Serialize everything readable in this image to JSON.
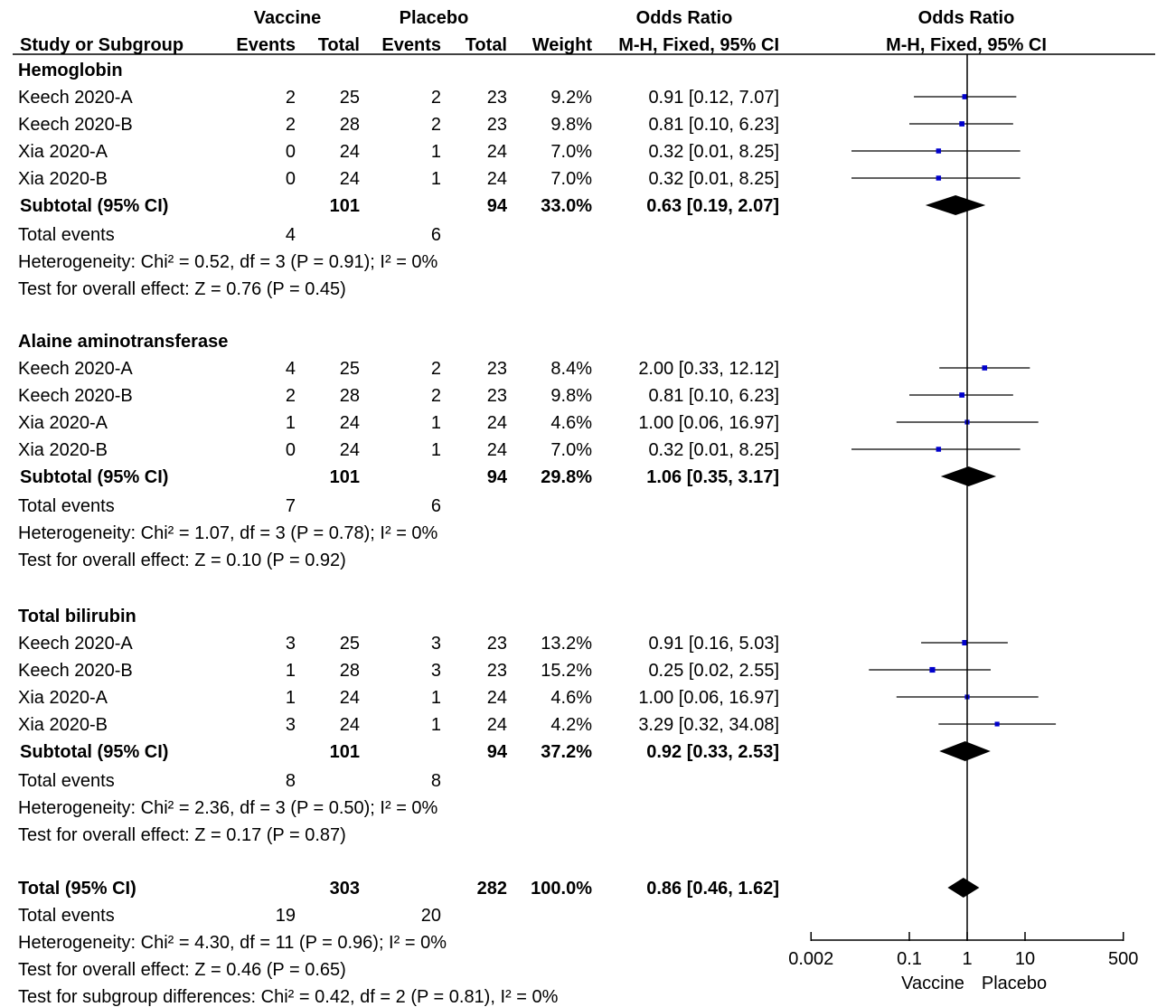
{
  "chart_data": {
    "type": "forest",
    "header": {
      "group1_label": "Vaccine",
      "group2_label": "Placebo",
      "effect_label": "Odds Ratio",
      "plot_label": "Odds Ratio",
      "columns": {
        "study": "Study or Subgroup",
        "events1": "Events",
        "total1": "Total",
        "events2": "Events",
        "total2": "Total",
        "weight": "Weight",
        "method": "M-H, Fixed, 95% CI",
        "plot_method": "M-H, Fixed, 95% CI"
      }
    },
    "subgroups": [
      {
        "name": "Hemoglobin",
        "studies": [
          {
            "study": "Keech 2020-A",
            "e1": "2",
            "n1": "25",
            "e2": "2",
            "n2": "23",
            "weight": "9.2%",
            "ci_text": "0.91 [0.12, 7.07]",
            "or": 0.91,
            "lo": 0.12,
            "hi": 7.07
          },
          {
            "study": "Keech 2020-B",
            "e1": "2",
            "n1": "28",
            "e2": "2",
            "n2": "23",
            "weight": "9.8%",
            "ci_text": "0.81 [0.10, 6.23]",
            "or": 0.81,
            "lo": 0.1,
            "hi": 6.23
          },
          {
            "study": "Xia 2020-A",
            "e1": "0",
            "n1": "24",
            "e2": "1",
            "n2": "24",
            "weight": "7.0%",
            "ci_text": "0.32 [0.01, 8.25]",
            "or": 0.32,
            "lo": 0.01,
            "hi": 8.25
          },
          {
            "study": "Xia 2020-B",
            "e1": "0",
            "n1": "24",
            "e2": "1",
            "n2": "24",
            "weight": "7.0%",
            "ci_text": "0.32 [0.01, 8.25]",
            "or": 0.32,
            "lo": 0.01,
            "hi": 8.25
          }
        ],
        "subtotal": {
          "label": "Subtotal (95% CI)",
          "n1": "101",
          "n2": "94",
          "weight": "33.0%",
          "ci_text": "0.63 [0.19, 2.07]",
          "or": 0.63,
          "lo": 0.19,
          "hi": 2.07
        },
        "events": {
          "label": "Total events",
          "e1": "4",
          "e2": "6"
        },
        "heterogeneity": "Heterogeneity: Chi² = 0.52, df = 3 (P = 0.91); I² = 0%",
        "overall": "Test for overall effect: Z = 0.76 (P = 0.45)"
      },
      {
        "name": "Alaine aminotransferase",
        "studies": [
          {
            "study": "Keech 2020-A",
            "e1": "4",
            "n1": "25",
            "e2": "2",
            "n2": "23",
            "weight": "8.4%",
            "ci_text": "2.00 [0.33, 12.12]",
            "or": 2.0,
            "lo": 0.33,
            "hi": 12.12
          },
          {
            "study": "Keech 2020-B",
            "e1": "2",
            "n1": "28",
            "e2": "2",
            "n2": "23",
            "weight": "9.8%",
            "ci_text": "0.81 [0.10, 6.23]",
            "or": 0.81,
            "lo": 0.1,
            "hi": 6.23
          },
          {
            "study": "Xia 2020-A",
            "e1": "1",
            "n1": "24",
            "e2": "1",
            "n2": "24",
            "weight": "4.6%",
            "ci_text": "1.00 [0.06, 16.97]",
            "or": 1.0,
            "lo": 0.06,
            "hi": 16.97
          },
          {
            "study": "Xia 2020-B",
            "e1": "0",
            "n1": "24",
            "e2": "1",
            "n2": "24",
            "weight": "7.0%",
            "ci_text": "0.32 [0.01, 8.25]",
            "or": 0.32,
            "lo": 0.01,
            "hi": 8.25
          }
        ],
        "subtotal": {
          "label": "Subtotal (95% CI)",
          "n1": "101",
          "n2": "94",
          "weight": "29.8%",
          "ci_text": "1.06 [0.35, 3.17]",
          "or": 1.06,
          "lo": 0.35,
          "hi": 3.17
        },
        "events": {
          "label": "Total events",
          "e1": "7",
          "e2": "6"
        },
        "heterogeneity": "Heterogeneity: Chi² = 1.07, df = 3 (P = 0.78); I² = 0%",
        "overall": "Test for overall effect: Z = 0.10 (P = 0.92)"
      },
      {
        "name": "Total bilirubin",
        "studies": [
          {
            "study": "Keech 2020-A",
            "e1": "3",
            "n1": "25",
            "e2": "3",
            "n2": "23",
            "weight": "13.2%",
            "ci_text": "0.91 [0.16, 5.03]",
            "or": 0.91,
            "lo": 0.16,
            "hi": 5.03
          },
          {
            "study": "Keech 2020-B",
            "e1": "1",
            "n1": "28",
            "e2": "3",
            "n2": "23",
            "weight": "15.2%",
            "ci_text": "0.25 [0.02, 2.55]",
            "or": 0.25,
            "lo": 0.02,
            "hi": 2.55
          },
          {
            "study": "Xia 2020-A",
            "e1": "1",
            "n1": "24",
            "e2": "1",
            "n2": "24",
            "weight": "4.6%",
            "ci_text": "1.00 [0.06, 16.97]",
            "or": 1.0,
            "lo": 0.06,
            "hi": 16.97
          },
          {
            "study": "Xia 2020-B",
            "e1": "3",
            "n1": "24",
            "e2": "1",
            "n2": "24",
            "weight": "4.2%",
            "ci_text": "3.29 [0.32, 34.08]",
            "or": 3.29,
            "lo": 0.32,
            "hi": 34.08
          }
        ],
        "subtotal": {
          "label": "Subtotal (95% CI)",
          "n1": "101",
          "n2": "94",
          "weight": "37.2%",
          "ci_text": "0.92 [0.33, 2.53]",
          "or": 0.92,
          "lo": 0.33,
          "hi": 2.53
        },
        "events": {
          "label": "Total events",
          "e1": "8",
          "e2": "8"
        },
        "heterogeneity": "Heterogeneity: Chi² = 2.36, df = 3 (P = 0.50); I² = 0%",
        "overall": "Test for overall effect: Z = 0.17 (P = 0.87)"
      }
    ],
    "total": {
      "label": "Total (95% CI)",
      "n1": "303",
      "n2": "282",
      "weight": "100.0%",
      "ci_text": "0.86 [0.46, 1.62]",
      "or": 0.86,
      "lo": 0.46,
      "hi": 1.62,
      "events": {
        "label": "Total events",
        "e1": "19",
        "e2": "20"
      },
      "heterogeneity": "Heterogeneity: Chi² = 4.30, df = 11 (P = 0.96); I² = 0%",
      "overall": "Test for overall effect: Z = 0.46 (P = 0.65)",
      "subgroup_diff": "Test for subgroup differences: Chi² = 0.42, df = 2 (P = 0.81), I² = 0%"
    },
    "axis": {
      "scale": "log",
      "ticks": [
        0.002,
        0.1,
        1,
        10,
        500
      ],
      "tick_labels": [
        "0.002",
        "0.1",
        "1",
        "10",
        "500"
      ],
      "xlim": [
        0.002,
        500
      ],
      "left_label": "Vaccine",
      "right_label": "Placebo"
    },
    "colors": {
      "study_marker": "#0000cc",
      "summary_marker": "#000000"
    }
  }
}
